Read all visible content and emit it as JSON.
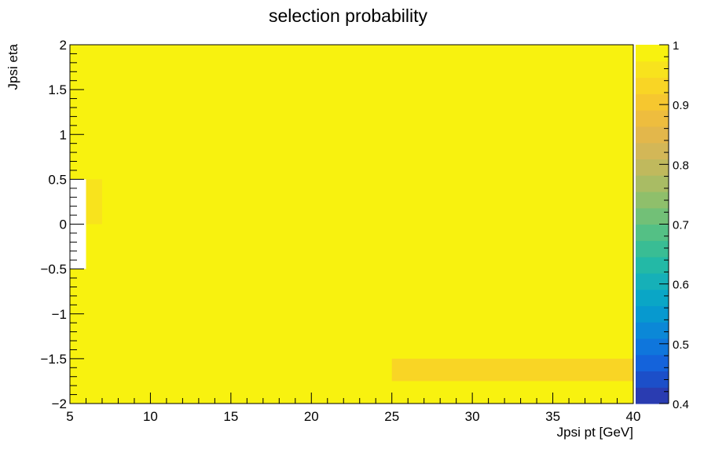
{
  "chart_data": {
    "type": "heatmap",
    "title": "selection probability",
    "xlabel": "Jpsi pt [GeV]",
    "ylabel": "Jpsi eta",
    "xlim": [
      5,
      40
    ],
    "ylim": [
      -2,
      2
    ],
    "x_ticks": [
      5,
      10,
      15,
      20,
      25,
      30,
      35,
      40
    ],
    "x_tick_labels": [
      "5",
      "10",
      "15",
      "20",
      "25",
      "30",
      "35",
      "40"
    ],
    "y_ticks": [
      -2,
      -1.5,
      -1,
      -0.5,
      0,
      0.5,
      1,
      1.5,
      2
    ],
    "y_tick_labels": [
      "−2",
      "−1.5",
      "−1",
      "−0.5",
      "0",
      "0.5",
      "1",
      "1.5",
      "2"
    ],
    "colorbar": {
      "range": [
        0.4,
        1
      ],
      "ticks": [
        0.4,
        0.5,
        0.6,
        0.7,
        0.8,
        0.9,
        1
      ],
      "tick_labels": [
        "0.4",
        "0.5",
        "0.6",
        "0.7",
        "0.8",
        "0.9",
        "1"
      ],
      "colors": [
        "#2a3cb1",
        "#1c4fc9",
        "#1463db",
        "#0f76dc",
        "#0b88d7",
        "#0799cf",
        "#0aa6c6",
        "#16b0b8",
        "#23b9a6",
        "#39bd94",
        "#54c085",
        "#72c077",
        "#8fbf6b",
        "#a9bc64",
        "#c0b95d",
        "#d3b757",
        "#e3b74b",
        "#eebd3e",
        "#f6c72f",
        "#f9d525",
        "#f8e31d",
        "#f8f20f"
      ]
    },
    "default_value": 1.0,
    "cells": [
      {
        "x": [
          5,
          6
        ],
        "y": [
          0,
          0.5
        ],
        "value": null
      },
      {
        "x": [
          5,
          6
        ],
        "y": [
          -0.5,
          0
        ],
        "value": null
      },
      {
        "x": [
          6,
          7
        ],
        "y": [
          0,
          0.5
        ],
        "value": 0.97
      },
      {
        "x": [
          5,
          6
        ],
        "y": [
          0.5,
          1.0
        ],
        "value": 0.975
      },
      {
        "x": [
          5,
          6
        ],
        "y": [
          -1.0,
          -0.5
        ],
        "value": 0.975
      },
      {
        "x": [
          25,
          40
        ],
        "y": [
          -1.75,
          -1.5
        ],
        "value": 0.92
      }
    ]
  }
}
